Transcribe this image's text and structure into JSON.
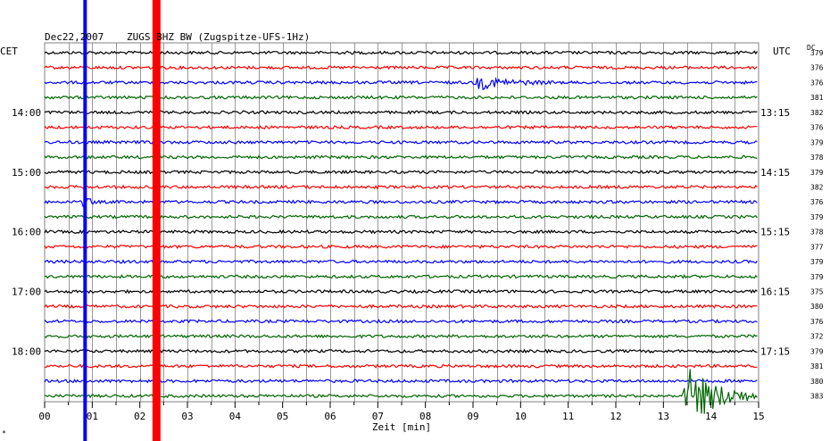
{
  "header": {
    "date": "Dec22,2007",
    "station": "ZUGS BHZ BW (Zugspitze-UFS-1Hz)"
  },
  "axis": {
    "left_tz": "CET",
    "right_tz": "UTC",
    "dc_label": "DC",
    "xlabel": "Zeit [min]"
  },
  "footer_mark": "*",
  "colors": {
    "trace_cycle": [
      "#000000",
      "#ff0000",
      "#0000ff",
      "#006600"
    ],
    "grid": "#808080",
    "marker_blue": "#0000ff",
    "marker_red": "#ff0000"
  },
  "chart_data": {
    "type": "line",
    "title": "ZUGS BHZ BW (Zugspitze-UFS-1Hz)",
    "xlabel": "Zeit [min]",
    "ylabel": "",
    "xlim": [
      0,
      15
    ],
    "x_ticks": [
      "00",
      "01",
      "02",
      "03",
      "04",
      "05",
      "06",
      "07",
      "08",
      "09",
      "10",
      "11",
      "12",
      "13",
      "14",
      "15"
    ],
    "row_minutes": 15,
    "trace_count": 24,
    "left_hour_labels": [
      {
        "trace": 4,
        "label": "14:00"
      },
      {
        "trace": 8,
        "label": "15:00"
      },
      {
        "trace": 12,
        "label": "16:00"
      },
      {
        "trace": 16,
        "label": "17:00"
      },
      {
        "trace": 20,
        "label": "18:00"
      }
    ],
    "right_hour_labels": [
      {
        "trace": 4,
        "label": "13:15"
      },
      {
        "trace": 8,
        "label": "14:15"
      },
      {
        "trace": 12,
        "label": "15:15"
      },
      {
        "trace": 16,
        "label": "16:15"
      },
      {
        "trace": 20,
        "label": "17:15"
      }
    ],
    "dc_offsets": [
      "379",
      "376",
      "376",
      "381",
      "382",
      "376",
      "379",
      "378",
      "379",
      "382",
      "376",
      "379",
      "378",
      "377",
      "379",
      "379",
      "375",
      "380",
      "376",
      "372",
      "379",
      "381",
      "380",
      "383"
    ],
    "markers": [
      {
        "minute": 0.85,
        "color": "blue"
      },
      {
        "minute": 2.35,
        "color": "red"
      }
    ],
    "events": [
      {
        "trace": 2,
        "start_min": 9.0,
        "duration_min": 1.8,
        "amplitude": 7
      },
      {
        "trace": 10,
        "start_min": 0.8,
        "duration_min": 0.3,
        "amplitude": 9
      },
      {
        "trace": 23,
        "start_min": 13.4,
        "duration_min": 2.0,
        "amplitude": 30
      }
    ]
  }
}
